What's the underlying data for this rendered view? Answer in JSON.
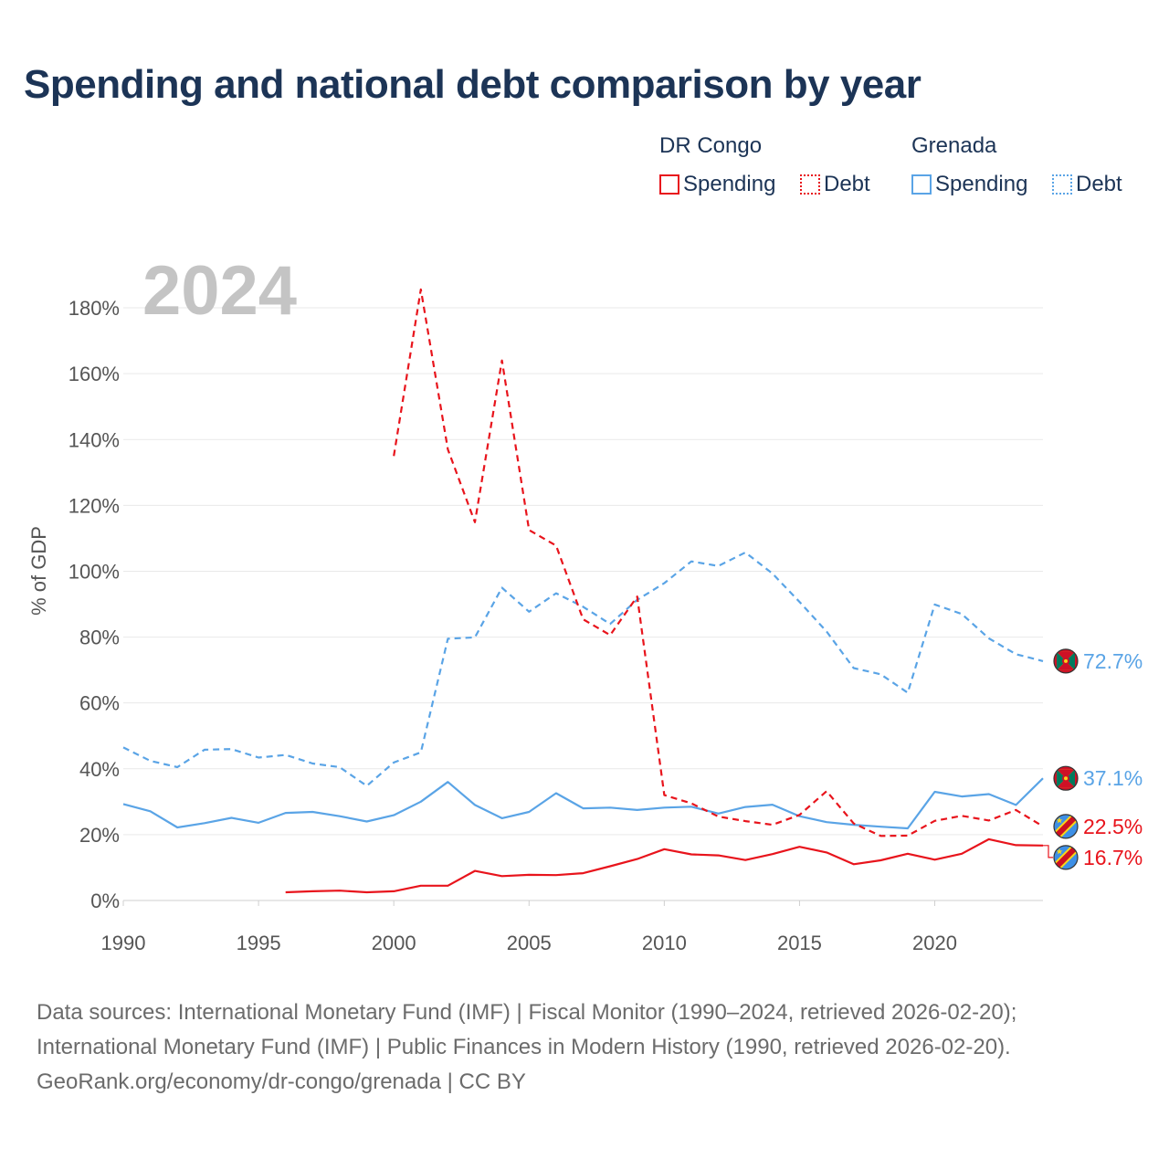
{
  "title": "Spending and national debt comparison by year",
  "legend": {
    "groups": [
      {
        "name": "DR Congo",
        "items": [
          {
            "label": "Spending",
            "style": "solid",
            "color": "#e8141c"
          },
          {
            "label": "Debt",
            "style": "dotted",
            "color": "#e8141c"
          }
        ]
      },
      {
        "name": "Grenada",
        "items": [
          {
            "label": "Spending",
            "style": "solid",
            "color": "#5aa4e6"
          },
          {
            "label": "Debt",
            "style": "dotted",
            "color": "#5aa4e6"
          }
        ]
      }
    ]
  },
  "chart_data": {
    "type": "line",
    "year_label": "2024",
    "ylabel": "% of GDP",
    "xlim": [
      1990,
      2024
    ],
    "ylim": [
      0,
      190
    ],
    "x_ticks": [
      1990,
      1995,
      2000,
      2005,
      2010,
      2015,
      2020
    ],
    "y_ticks": [
      0,
      20,
      40,
      60,
      80,
      100,
      120,
      140,
      160,
      180
    ],
    "y_tick_labels": [
      "0%",
      "20%",
      "40%",
      "60%",
      "80%",
      "100%",
      "120%",
      "140%",
      "160%",
      "180%"
    ],
    "series": [
      {
        "name": "Grenada Debt",
        "country": "Grenada",
        "kind": "Debt",
        "color": "#5aa4e6",
        "dashed": true,
        "x": [
          1990,
          1991,
          1992,
          1993,
          1994,
          1995,
          1996,
          1997,
          1998,
          1999,
          2000,
          2001,
          2002,
          2003,
          2004,
          2005,
          2006,
          2007,
          2008,
          2009,
          2010,
          2011,
          2012,
          2013,
          2014,
          2015,
          2016,
          2017,
          2018,
          2019,
          2020,
          2021,
          2022,
          2023,
          2024
        ],
        "values": [
          46.5,
          42.4,
          40.5,
          45.8,
          46.0,
          43.4,
          44.2,
          41.6,
          40.5,
          34.8,
          41.9,
          45.0,
          79.5,
          79.9,
          95.0,
          87.7,
          93.3,
          89.2,
          84.0,
          91.3,
          96.4,
          103.0,
          101.6,
          105.7,
          99.3,
          90.7,
          81.7,
          70.6,
          68.7,
          63.1,
          89.9,
          87.0,
          79.6,
          74.8,
          72.7
        ],
        "end_label": "72.7%",
        "flag": "grenada"
      },
      {
        "name": "Grenada Spending",
        "country": "Grenada",
        "kind": "Spending",
        "color": "#5aa4e6",
        "dashed": false,
        "x": [
          1990,
          1991,
          1992,
          1993,
          1994,
          1995,
          1996,
          1997,
          1998,
          1999,
          2000,
          2001,
          2002,
          2003,
          2004,
          2005,
          2006,
          2007,
          2008,
          2009,
          2010,
          2011,
          2012,
          2013,
          2014,
          2015,
          2016,
          2017,
          2018,
          2019,
          2020,
          2021,
          2022,
          2023,
          2024
        ],
        "values": [
          29.3,
          27.1,
          22.2,
          23.5,
          25.1,
          23.6,
          26.6,
          26.9,
          25.6,
          24.0,
          25.9,
          30.0,
          36.0,
          29.0,
          25.0,
          26.9,
          32.6,
          28.0,
          28.2,
          27.5,
          28.2,
          28.5,
          26.4,
          28.4,
          29.1,
          25.6,
          23.8,
          23.0,
          22.4,
          21.9,
          33.0,
          31.6,
          32.3,
          29.0,
          37.1
        ],
        "end_label": "37.1%",
        "flag": "grenada"
      },
      {
        "name": "DR Congo Debt",
        "country": "DR Congo",
        "kind": "Debt",
        "color": "#e8141c",
        "dashed": true,
        "x": [
          2000,
          2001,
          2002,
          2003,
          2004,
          2005,
          2006,
          2007,
          2008,
          2009,
          2010,
          2011,
          2012,
          2013,
          2014,
          2015,
          2016,
          2017,
          2018,
          2019,
          2020,
          2021,
          2022,
          2023,
          2024
        ],
        "values": [
          135.0,
          185.6,
          137.0,
          114.9,
          164.0,
          112.5,
          107.8,
          85.4,
          80.6,
          92.3,
          32.0,
          29.5,
          25.5,
          24.1,
          23.0,
          26.0,
          33.2,
          23.4,
          19.6,
          19.7,
          24.2,
          25.7,
          24.3,
          27.5,
          22.5
        ],
        "end_label": "22.5%",
        "flag": "drcongo"
      },
      {
        "name": "DR Congo Spending",
        "country": "DR Congo",
        "kind": "Spending",
        "color": "#e8141c",
        "dashed": false,
        "x": [
          1996,
          1997,
          1998,
          1999,
          2000,
          2001,
          2002,
          2003,
          2004,
          2005,
          2006,
          2007,
          2008,
          2009,
          2010,
          2011,
          2012,
          2013,
          2014,
          2015,
          2016,
          2017,
          2018,
          2019,
          2020,
          2021,
          2022,
          2023,
          2024
        ],
        "values": [
          2.5,
          2.8,
          3.0,
          2.5,
          2.8,
          4.5,
          4.5,
          9.0,
          7.4,
          7.8,
          7.7,
          8.3,
          10.4,
          12.6,
          15.6,
          14.0,
          13.7,
          12.3,
          14.1,
          16.3,
          14.6,
          11.0,
          12.2,
          14.2,
          12.4,
          14.2,
          18.6,
          16.8,
          16.7
        ],
        "end_label": "16.7%",
        "flag": "drcongo"
      }
    ]
  },
  "sources": {
    "line1": "Data sources: International Monetary Fund (IMF) | Fiscal Monitor (1990–2024, retrieved 2026-02-20);",
    "line2": "International Monetary Fund (IMF) | Public Finances in Modern History (1990, retrieved 2026-02-20).",
    "line3": "GeoRank.org/economy/dr-congo/grenada | CC BY"
  }
}
